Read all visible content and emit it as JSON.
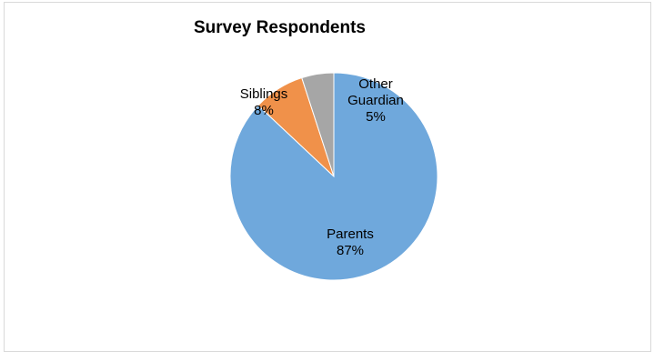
{
  "chart_data": {
    "type": "pie",
    "title": "Survey Respondents",
    "slices": [
      {
        "name": "Parents",
        "value": 87,
        "label": "87%",
        "color": "#6fa8dc"
      },
      {
        "name": "Siblings",
        "value": 8,
        "label": "8%",
        "color": "#f0914a"
      },
      {
        "name": "Other Guardian",
        "value": 5,
        "label": "5%",
        "color": "#a6a6a6"
      }
    ],
    "legend": "none"
  }
}
